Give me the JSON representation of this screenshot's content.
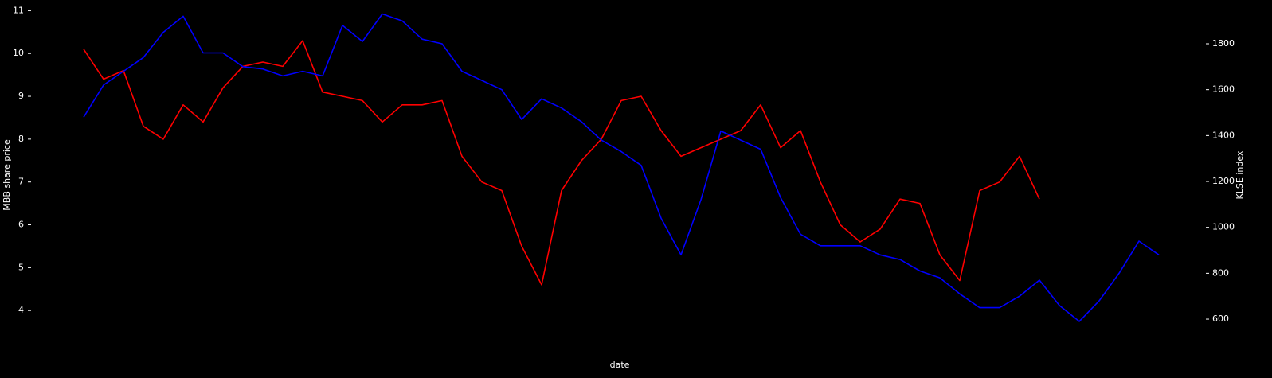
{
  "chart_data": {
    "type": "line",
    "x_label": "date",
    "y_label": "MBB share price",
    "y2_label": "KLSE index",
    "x": [
      0,
      1,
      2,
      3,
      4,
      5,
      6,
      7,
      8,
      9,
      10,
      11,
      12,
      13,
      14,
      15,
      16,
      17,
      18,
      19,
      20,
      21,
      22,
      23,
      24,
      25,
      26,
      27,
      28,
      29,
      30,
      31,
      32,
      33,
      34,
      35,
      36,
      37,
      38,
      39,
      40,
      41,
      42,
      43,
      44,
      45,
      46,
      47,
      48,
      49,
      50,
      51,
      52,
      53,
      54
    ],
    "xlim": [
      -2.4,
      56.2
    ],
    "ylim": [
      3.0,
      11.1
    ],
    "yticks": [
      4,
      5,
      6,
      7,
      8,
      9,
      10,
      11
    ],
    "y2lim": [
      451,
      1963
    ],
    "y2ticks": [
      600,
      800,
      1000,
      1200,
      1400,
      1600,
      1800
    ],
    "grid": false,
    "series": [
      {
        "name": "MBB share price",
        "color": "#ff0000",
        "axis": "y",
        "values": [
          10.1,
          9.4,
          9.6,
          8.3,
          8.0,
          8.8,
          8.4,
          9.2,
          9.7,
          9.8,
          9.7,
          10.3,
          9.1,
          9.0,
          8.9,
          8.4,
          8.8,
          8.8,
          8.9,
          7.6,
          7.0,
          6.8,
          5.5,
          4.6,
          6.8,
          7.5,
          8.0,
          8.9,
          9.0,
          8.2,
          7.6,
          7.8,
          8.0,
          8.2,
          8.8,
          7.8,
          8.2,
          7.0,
          6.0,
          5.6,
          5.9,
          6.6,
          6.5,
          5.3,
          4.7,
          6.8,
          7.0,
          7.6,
          6.6,
          null,
          null,
          null,
          null,
          null,
          null
        ]
      },
      {
        "name": "KLSE index",
        "color": "#0000ff",
        "axis": "y2",
        "values": [
          1480,
          1620,
          1680,
          1740,
          1850,
          1920,
          1760,
          1760,
          1700,
          1690,
          1660,
          1680,
          1660,
          1880,
          1810,
          1930,
          1900,
          1820,
          1800,
          1680,
          1640,
          1600,
          1470,
          1560,
          1520,
          1460,
          1380,
          1330,
          1270,
          1040,
          880,
          1120,
          1420,
          1380,
          1340,
          1130,
          970,
          920,
          920,
          920,
          880,
          860,
          810,
          780,
          710,
          650,
          650,
          700,
          770,
          660,
          590,
          680,
          800,
          940,
          880
        ]
      }
    ]
  }
}
